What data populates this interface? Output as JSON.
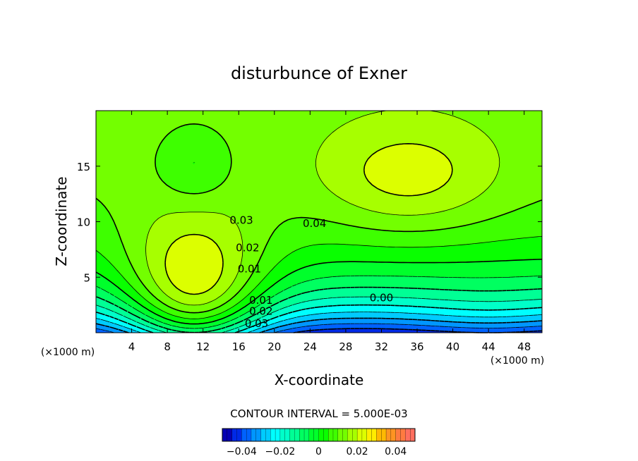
{
  "chart_data": {
    "type": "heatmap",
    "title": "disturbunce of Exner",
    "xlabel": "X-coordinate",
    "ylabel": "Z-coordinate",
    "x_unit_label": "(×1000 m)",
    "y_unit_label": "(×1000 m)",
    "xlim": [
      0,
      50
    ],
    "ylim": [
      0,
      20
    ],
    "x_ticks": [
      4,
      8,
      12,
      16,
      20,
      24,
      28,
      32,
      36,
      40,
      44,
      48
    ],
    "y_ticks": [
      5,
      10,
      15
    ],
    "contour_interval_label": "CONTOUR INTERVAL = 5.000E-03",
    "contour_interval": 0.005,
    "contour_labels": [
      {
        "text": "0.03",
        "x": 16.3,
        "y": 10.2
      },
      {
        "text": "0.04",
        "x": 24.5,
        "y": 9.9
      },
      {
        "text": "0.02",
        "x": 17.0,
        "y": 7.7
      },
      {
        "text": "0.01",
        "x": 17.2,
        "y": 5.8
      },
      {
        "text": "0.00",
        "x": 32.0,
        "y": 3.2
      },
      {
        "text": "0.01",
        "x": 18.5,
        "y": 3.0
      },
      {
        "text": "0.02",
        "x": 18.5,
        "y": 2.0
      },
      {
        "text": "0.03",
        "x": 18.0,
        "y": 0.9
      }
    ],
    "colorbar": {
      "range": [
        -0.05,
        0.05
      ],
      "tick_values": [
        -0.04,
        -0.02,
        0,
        0.02,
        0.04
      ],
      "tick_labels": [
        "−0.04",
        "−0.02",
        "0",
        "0.02",
        "0.04"
      ]
    },
    "value_range": [
      -0.045,
      0.0495
    ]
  }
}
